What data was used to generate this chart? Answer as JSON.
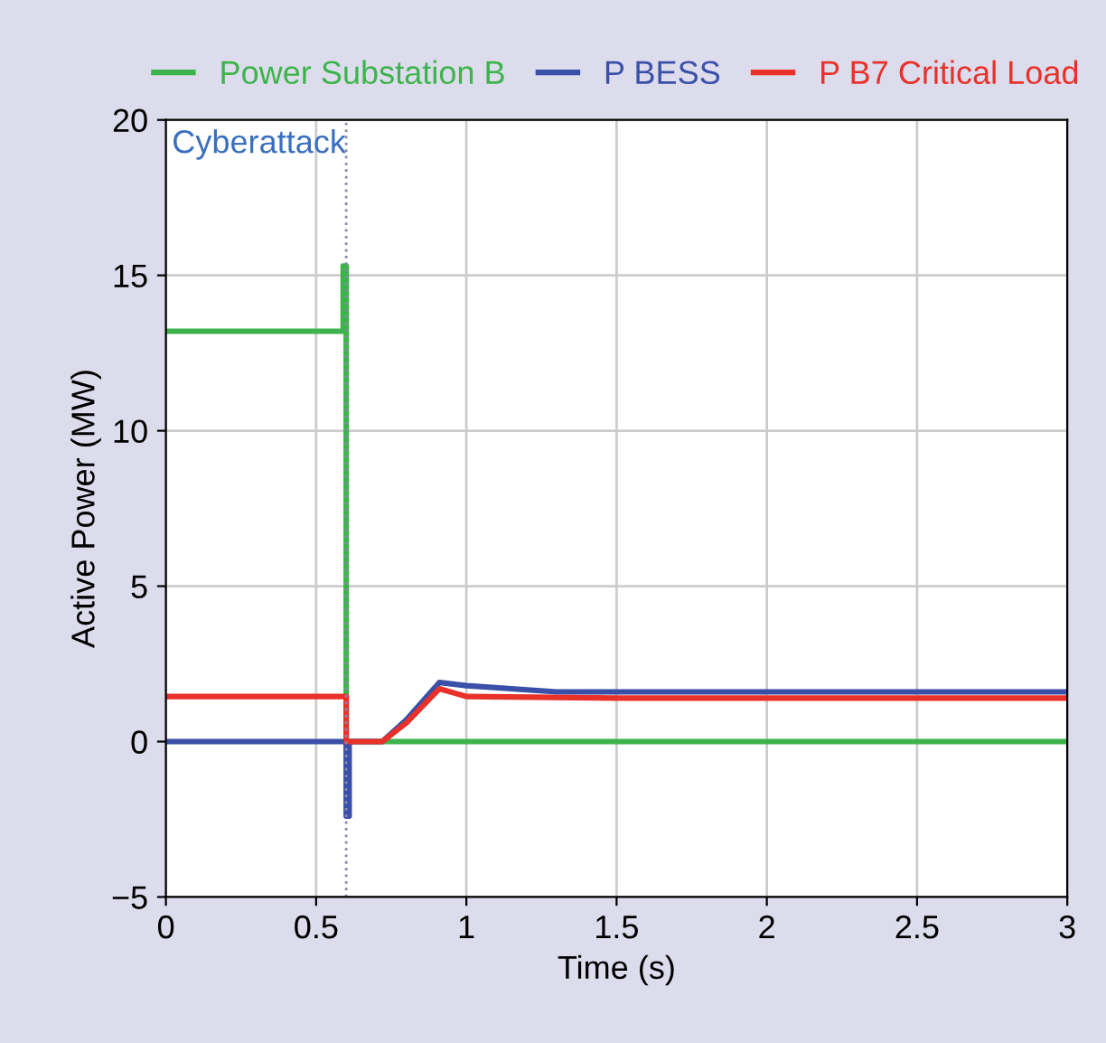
{
  "chart_data": {
    "type": "line",
    "xlabel": "Time (s)",
    "ylabel": "Active Power (MW)",
    "xlim": [
      0,
      3
    ],
    "ylim": [
      -5,
      20
    ],
    "xticks": [
      0,
      0.5,
      1,
      1.5,
      2,
      2.5,
      3
    ],
    "yticks": [
      {
        "value": -5,
        "label": "−5"
      },
      0,
      5,
      10,
      15,
      20
    ],
    "grid": true,
    "legend": "top",
    "line_style": "solid",
    "ref_lines": [
      {
        "axis": "x",
        "value": 0.6,
        "label": "Cyberattack",
        "color": "#8888aa",
        "line_style": "dotted"
      }
    ],
    "series": [
      {
        "name": "Power Substation B",
        "color": "#3cb44b",
        "x": [
          0,
          0.59,
          0.59,
          0.6,
          0.6,
          3
        ],
        "values": [
          13.2,
          13.2,
          15.3,
          15.3,
          0,
          0
        ]
      },
      {
        "name": "P BESS",
        "color": "#3a4fa8",
        "x": [
          0,
          0.6,
          0.6,
          0.61,
          0.61,
          0.72,
          0.8,
          0.91,
          1.0,
          1.3,
          1.5,
          3
        ],
        "values": [
          0,
          0,
          -2.4,
          -2.4,
          0,
          0,
          0.7,
          1.9,
          1.8,
          1.6,
          1.6,
          1.6
        ]
      },
      {
        "name": "P B7 Critical Load",
        "color": "#e8312a",
        "x": [
          0,
          0.6,
          0.6,
          0.72,
          0.8,
          0.91,
          1.0,
          1.5,
          3
        ],
        "values": [
          1.45,
          1.45,
          0,
          0,
          0.6,
          1.7,
          1.45,
          1.4,
          1.4
        ]
      }
    ]
  }
}
